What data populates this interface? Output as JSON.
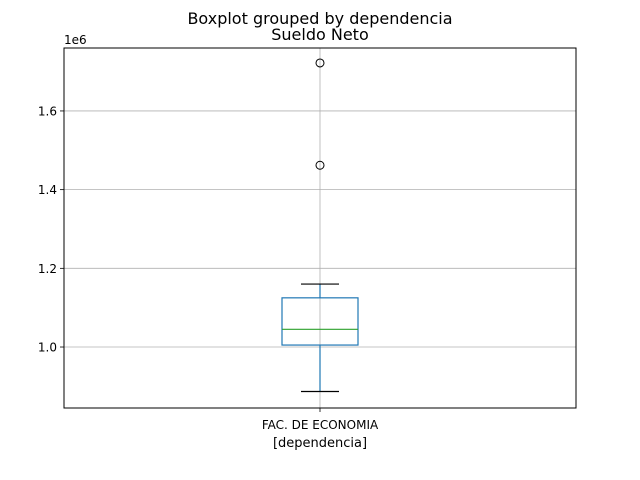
{
  "figure": {
    "suptitle": "Boxplot grouped by dependencia"
  },
  "chart_data": {
    "type": "box",
    "title": "Sueldo Neto",
    "xlabel": "[dependencia]",
    "ylabel": "",
    "offset_label": "1e6",
    "ylim": [
      0.845,
      1.76
    ],
    "yticks": [
      1.0,
      1.2,
      1.4,
      1.6
    ],
    "ytick_labels": [
      "1.0",
      "1.2",
      "1.4",
      "1.6"
    ],
    "grid": true,
    "categories": [
      "FAC. DE ECONOMIA"
    ],
    "boxes": [
      {
        "category": "FAC. DE ECONOMIA",
        "whisker_low": 0.887,
        "q1": 1.005,
        "median": 1.045,
        "q3": 1.125,
        "whisker_high": 1.16,
        "outliers": [
          1.462,
          1.722
        ]
      }
    ],
    "colors": {
      "box": "#1f77b4",
      "median": "#2ca02c",
      "caps": "#000000",
      "grid": "#b0b0b0"
    }
  }
}
